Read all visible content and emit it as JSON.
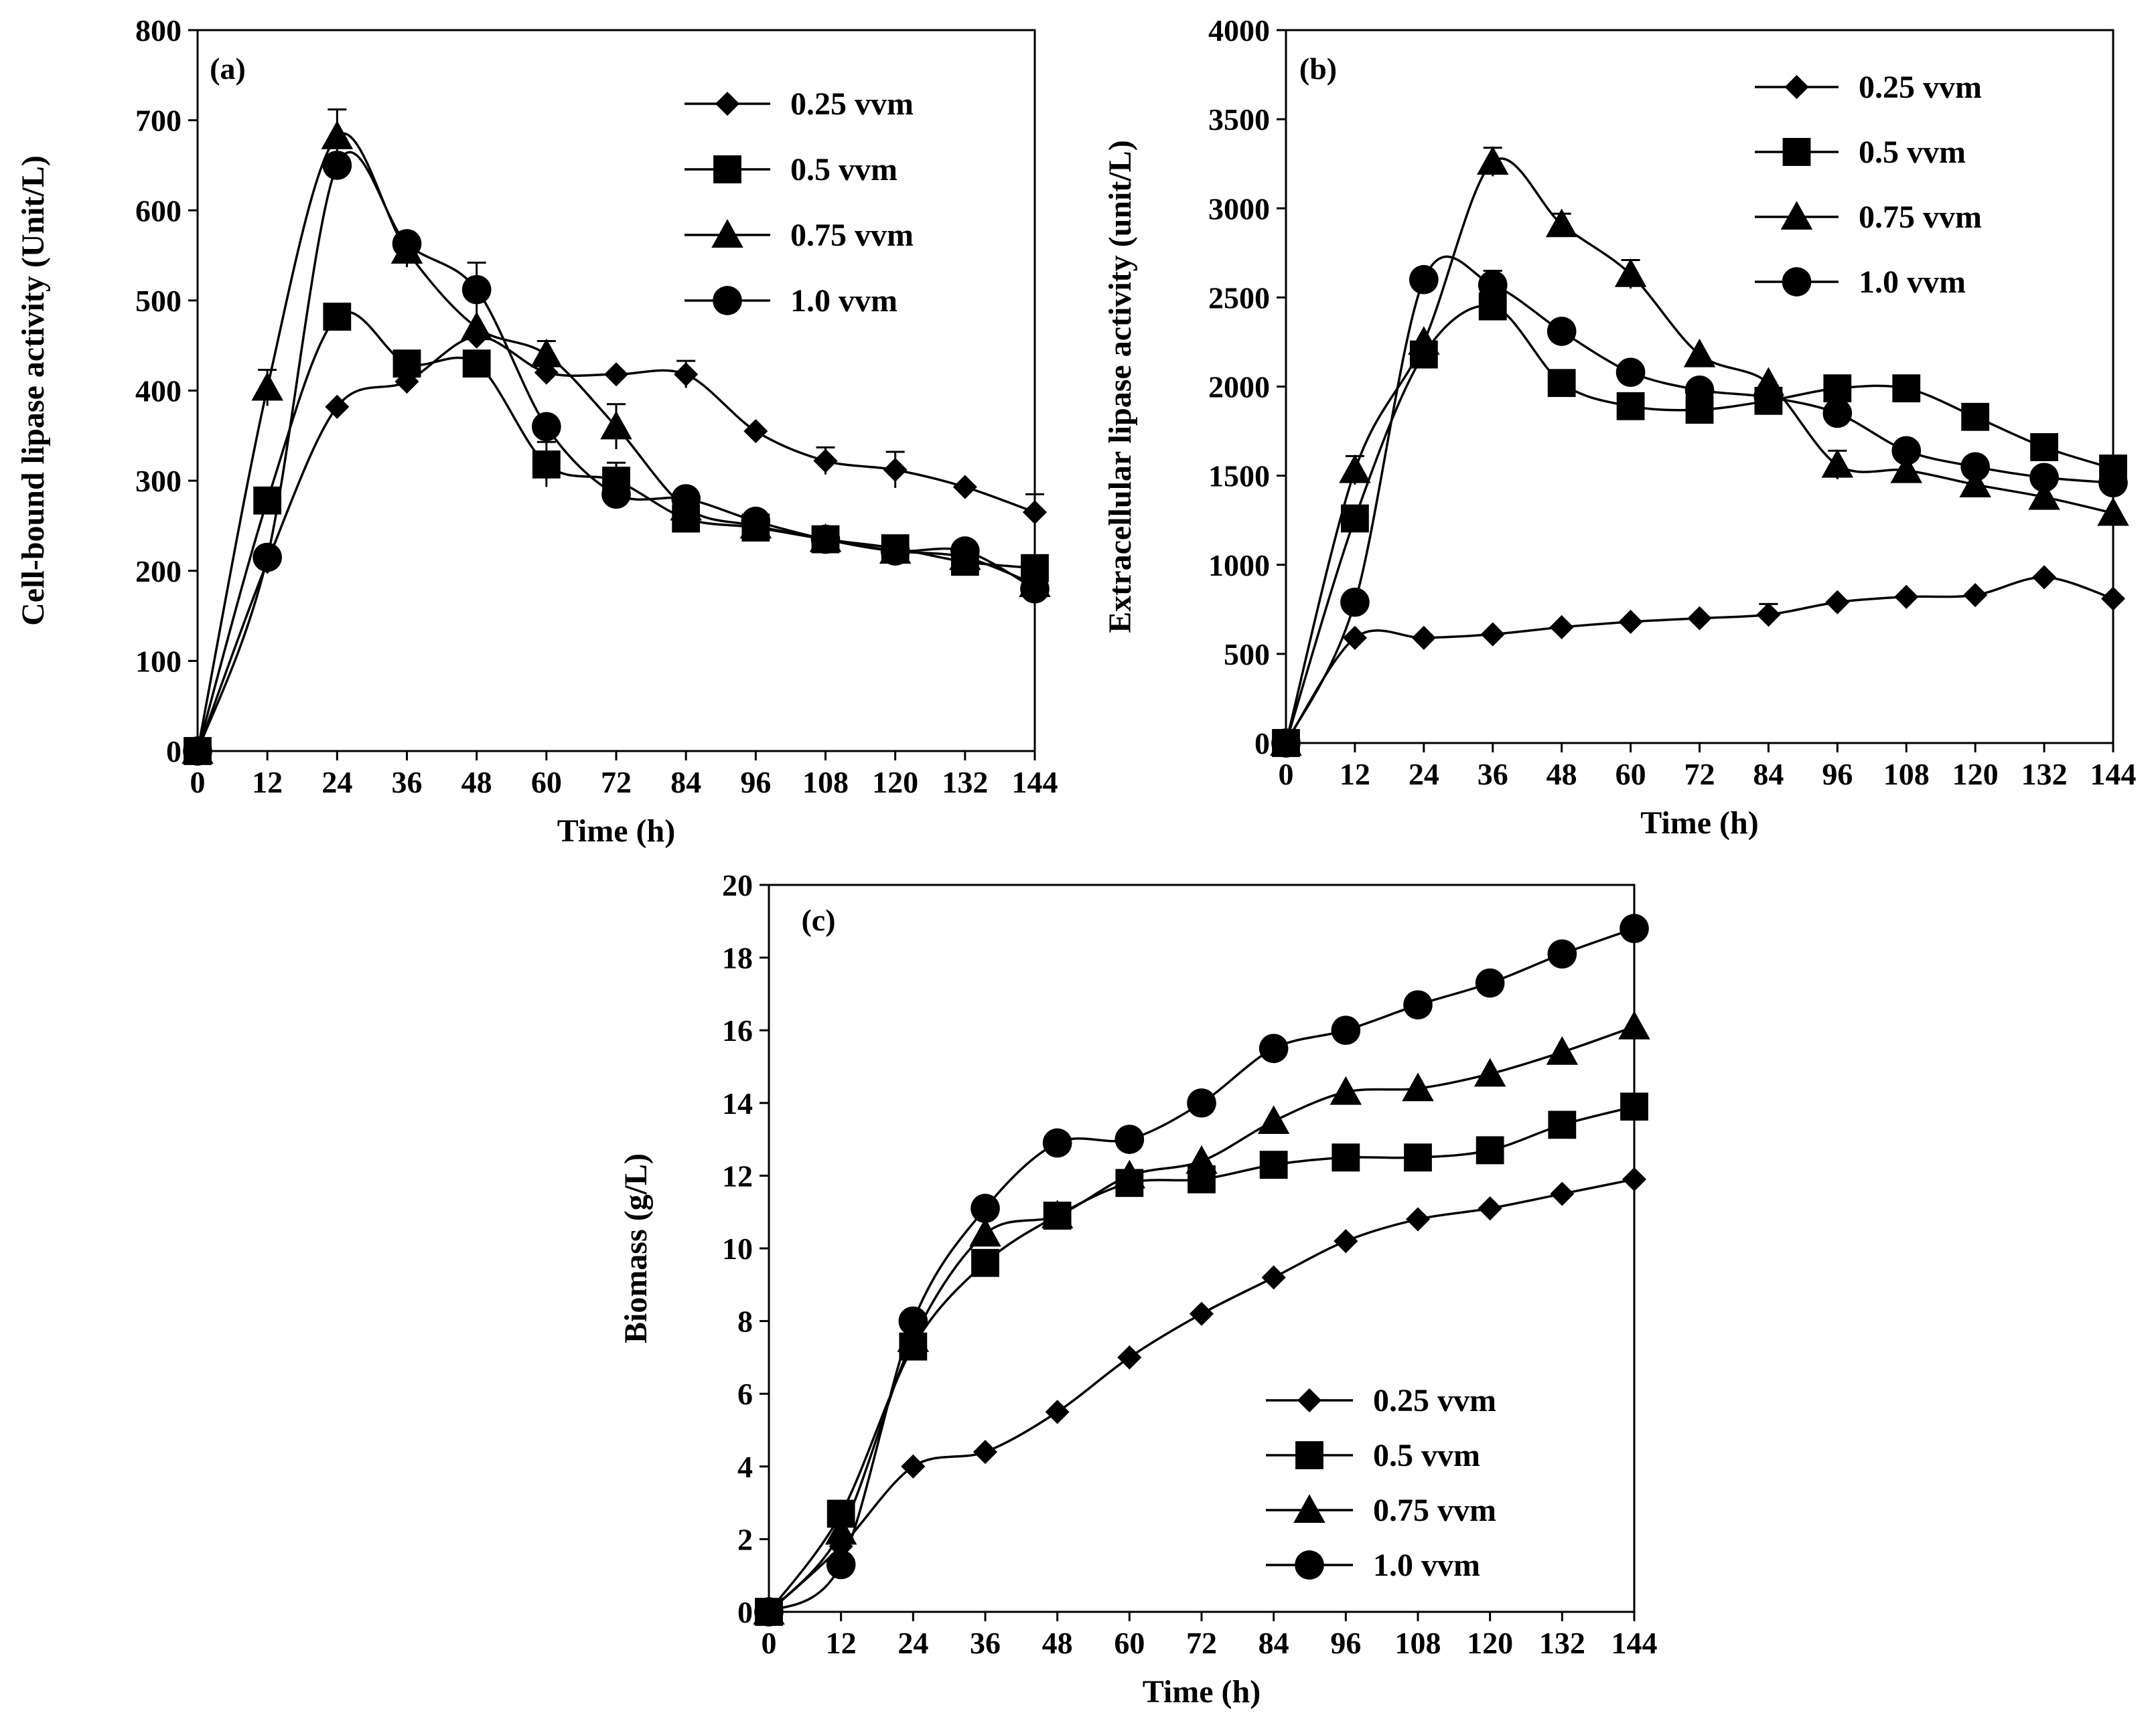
{
  "figure": {
    "colors": {
      "line": "#000000",
      "marker": "#000000",
      "background": "#ffffff"
    }
  },
  "chart_data": [
    {
      "panel": "(a)",
      "type": "line",
      "xlabel": "Time (h)",
      "ylabel": "Cell-bound lipase activity (Unit/L)",
      "x": [
        0,
        12,
        24,
        36,
        48,
        60,
        72,
        84,
        96,
        108,
        120,
        132,
        144
      ],
      "xlim": [
        0,
        144
      ],
      "ylim": [
        0,
        800
      ],
      "xticks": [
        "0",
        "12",
        "24",
        "36",
        "48",
        "60",
        "72",
        "84",
        "96",
        "108",
        "120",
        "132",
        "144"
      ],
      "yticks": [
        "0",
        "100",
        "200",
        "300",
        "400",
        "500",
        "600",
        "700",
        "800"
      ],
      "legend_position": "top-right",
      "series": [
        {
          "name": "0.25 vvm",
          "marker": "diamond",
          "values": [
            0,
            210,
            382,
            410,
            460,
            420,
            418,
            418,
            355,
            322,
            312,
            293,
            265
          ],
          "errors": [
            0,
            0,
            0,
            0,
            0,
            0,
            0,
            15,
            0,
            15,
            20,
            0,
            20
          ]
        },
        {
          "name": "0.5 vvm",
          "marker": "square",
          "values": [
            0,
            278,
            482,
            430,
            430,
            318,
            300,
            258,
            248,
            235,
            225,
            210,
            203
          ],
          "errors": [
            0,
            0,
            0,
            0,
            0,
            25,
            20,
            0,
            0,
            0,
            0,
            0,
            0
          ]
        },
        {
          "name": "0.75 vvm",
          "marker": "triangle",
          "values": [
            0,
            403,
            682,
            555,
            470,
            440,
            360,
            270,
            250,
            235,
            222,
            215,
            185
          ],
          "errors": [
            0,
            20,
            30,
            18,
            0,
            15,
            25,
            0,
            0,
            0,
            0,
            0,
            0
          ]
        },
        {
          "name": "1.0 vvm",
          "marker": "circle",
          "values": [
            0,
            215,
            650,
            563,
            512,
            360,
            285,
            280,
            255,
            235,
            222,
            222,
            180
          ],
          "errors": [
            0,
            0,
            0,
            0,
            30,
            0,
            0,
            0,
            0,
            0,
            0,
            0,
            0
          ]
        }
      ]
    },
    {
      "panel": "(b)",
      "type": "line",
      "xlabel": "Time (h)",
      "ylabel": "Extracellular lipase activity (unit/L)",
      "x": [
        0,
        12,
        24,
        36,
        48,
        60,
        72,
        84,
        96,
        108,
        120,
        132,
        144
      ],
      "xlim": [
        0,
        144
      ],
      "ylim": [
        0,
        4000
      ],
      "xticks": [
        "0",
        "12",
        "24",
        "36",
        "48",
        "60",
        "72",
        "84",
        "96",
        "108",
        "120",
        "132",
        "144"
      ],
      "yticks": [
        "0",
        "500",
        "1000",
        "1500",
        "2000",
        "2500",
        "3000",
        "3500",
        "4000"
      ],
      "legend_position": "top-right",
      "series": [
        {
          "name": "0.25 vvm",
          "marker": "diamond",
          "values": [
            0,
            590,
            590,
            610,
            650,
            680,
            700,
            720,
            790,
            820,
            830,
            930,
            810
          ],
          "errors": [
            0,
            0,
            0,
            0,
            0,
            0,
            0,
            60,
            0,
            0,
            0,
            0,
            0
          ]
        },
        {
          "name": "0.5 vvm",
          "marker": "square",
          "values": [
            0,
            1260,
            2180,
            2450,
            2020,
            1890,
            1870,
            1920,
            1990,
            1990,
            1830,
            1660,
            1540
          ],
          "errors": [
            0,
            0,
            0,
            0,
            0,
            0,
            0,
            0,
            0,
            0,
            0,
            0,
            0
          ]
        },
        {
          "name": "0.75 vvm",
          "marker": "triangle",
          "values": [
            0,
            1530,
            2250,
            3260,
            2910,
            2630,
            2180,
            2020,
            1560,
            1530,
            1450,
            1380,
            1290
          ],
          "errors": [
            0,
            80,
            0,
            80,
            60,
            80,
            0,
            0,
            80,
            0,
            0,
            0,
            0
          ]
        },
        {
          "name": "1.0 vvm",
          "marker": "circle",
          "values": [
            0,
            790,
            2600,
            2570,
            2310,
            2080,
            1980,
            1940,
            1850,
            1640,
            1550,
            1490,
            1460
          ],
          "errors": [
            0,
            0,
            0,
            80,
            0,
            0,
            0,
            0,
            0,
            0,
            0,
            0,
            0
          ]
        }
      ]
    },
    {
      "panel": "(c)",
      "type": "line",
      "xlabel": "Time (h)",
      "ylabel": "Biomass (g/L)",
      "x": [
        0,
        12,
        24,
        36,
        48,
        60,
        72,
        84,
        96,
        108,
        120,
        132,
        144
      ],
      "xlim": [
        0,
        144
      ],
      "ylim": [
        0,
        20
      ],
      "xticks": [
        "0",
        "12",
        "24",
        "36",
        "48",
        "60",
        "72",
        "84",
        "96",
        "108",
        "120",
        "132",
        "144"
      ],
      "yticks": [
        "0",
        "2",
        "4",
        "6",
        "8",
        "10",
        "12",
        "14",
        "16",
        "18",
        "20"
      ],
      "legend_position": "bottom-right",
      "series": [
        {
          "name": "0.25 vvm",
          "marker": "diamond",
          "values": [
            0,
            1.8,
            4.0,
            4.4,
            5.5,
            7.0,
            8.2,
            9.2,
            10.2,
            10.8,
            11.1,
            11.5,
            11.9
          ],
          "errors": [
            0,
            0,
            0,
            0,
            0,
            0,
            0,
            0,
            0,
            0,
            0,
            0,
            0
          ]
        },
        {
          "name": "0.5 vvm",
          "marker": "square",
          "values": [
            0,
            2.7,
            7.3,
            9.6,
            10.9,
            11.8,
            11.9,
            12.3,
            12.5,
            12.5,
            12.7,
            13.4,
            13.9
          ],
          "errors": [
            0,
            0,
            0,
            0,
            0,
            0,
            0,
            0,
            0,
            0,
            0,
            0,
            0
          ]
        },
        {
          "name": "0.75 vvm",
          "marker": "triangle",
          "values": [
            0,
            2.2,
            7.5,
            10.4,
            10.9,
            12.0,
            12.4,
            13.5,
            14.3,
            14.4,
            14.8,
            15.4,
            16.1
          ],
          "errors": [
            0,
            0,
            0,
            0,
            0,
            0,
            0,
            0,
            0,
            0,
            0,
            0,
            0
          ]
        },
        {
          "name": "1.0 vvm",
          "marker": "circle",
          "values": [
            0,
            1.3,
            8.0,
            11.1,
            12.9,
            13.0,
            14.0,
            15.5,
            16.0,
            16.7,
            17.3,
            18.1,
            18.8
          ],
          "errors": [
            0,
            0,
            0,
            0,
            0,
            0,
            0,
            0,
            0,
            0,
            0,
            0,
            0
          ]
        }
      ]
    }
  ]
}
